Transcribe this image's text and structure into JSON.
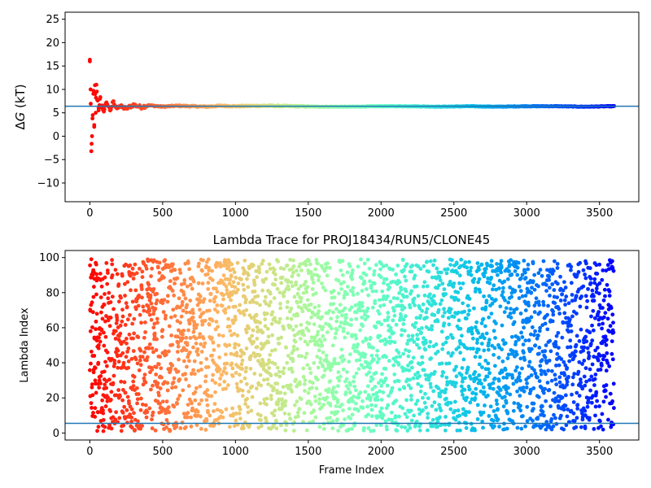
{
  "chart_data": [
    {
      "type": "scatter",
      "title": "",
      "xlabel": "",
      "ylabel": "ΔG (kT)",
      "ylabel_delta": "Δ",
      "ylabel_italic": "G",
      "ylabel_unit": " (kT)",
      "xlim": [
        -170,
        3770
      ],
      "ylim": [
        -14,
        26.5
      ],
      "xticks": [
        0,
        500,
        1000,
        1500,
        2000,
        2500,
        3000,
        3500
      ],
      "yticks": [
        -10,
        -5,
        0,
        5,
        10,
        15,
        20,
        25
      ],
      "reference_line": 6.4,
      "reference_line_color": "#1f77b4",
      "colormap": "rainbow (reversed along frames)",
      "series": [
        {
          "x": [
            0,
            5,
            10,
            15,
            20,
            25,
            30,
            35,
            40,
            45,
            50,
            60,
            70,
            80,
            90,
            100,
            120,
            140,
            160,
            180,
            200,
            250,
            300,
            350,
            400,
            500,
            600,
            700,
            800,
            900,
            1000,
            1200,
            1400,
            1600,
            1800,
            2000,
            2200,
            2400,
            2600,
            2800,
            3000,
            3200,
            3400,
            3590
          ],
          "y": [
            16.0,
            10.0,
            -3.2,
            0.0,
            4.5,
            9.7,
            2.0,
            10.9,
            5.0,
            11.0,
            7.8,
            5.5,
            8.0,
            6.5,
            6.2,
            5.7,
            6.8,
            5.5,
            7.3,
            6.1,
            6.4,
            5.9,
            6.7,
            6.2,
            6.6,
            6.3,
            6.5,
            6.4,
            6.3,
            6.5,
            6.4,
            6.5,
            6.4,
            6.3,
            6.3,
            6.4,
            6.4,
            6.3,
            6.4,
            6.3,
            6.4,
            6.4,
            6.3,
            6.4
          ]
        }
      ]
    },
    {
      "type": "scatter",
      "title": "Lambda Trace for PROJ18434/RUN5/CLONE45",
      "xlabel": "Frame Index",
      "ylabel": "Lambda Index",
      "xlim": [
        -170,
        3770
      ],
      "ylim": [
        -4,
        104
      ],
      "xticks": [
        0,
        500,
        1000,
        1500,
        2000,
        2500,
        3000,
        3500
      ],
      "yticks": [
        0,
        20,
        40,
        60,
        80,
        100
      ],
      "reference_line": 5.5,
      "reference_line_color": "#1f77b4",
      "colormap": "rainbow (reversed along frames)",
      "series": [
        {
          "x_range": [
            0,
            3600
          ],
          "y_range": [
            1,
            99
          ],
          "n_points": 3600,
          "sampled_points": [
            [
              5,
              58
            ],
            [
              10,
              99
            ],
            [
              20,
              90
            ],
            [
              30,
              44
            ],
            [
              40,
              97
            ],
            [
              60,
              88
            ],
            [
              80,
              13
            ],
            [
              100,
              35
            ],
            [
              200,
              20
            ],
            [
              300,
              88
            ],
            [
              400,
              98
            ],
            [
              500,
              74
            ],
            [
              600,
              52
            ],
            [
              700,
              34
            ],
            [
              800,
              8
            ],
            [
              900,
              87
            ],
            [
              1000,
              72
            ],
            [
              1100,
              42
            ],
            [
              1200,
              17
            ],
            [
              1300,
              63
            ],
            [
              1400,
              95
            ],
            [
              1500,
              70
            ],
            [
              1600,
              38
            ],
            [
              1700,
              12
            ],
            [
              1800,
              55
            ],
            [
              1900,
              82
            ],
            [
              2000,
              30
            ],
            [
              2100,
              6
            ],
            [
              2200,
              92
            ],
            [
              2300,
              48
            ],
            [
              2400,
              21
            ],
            [
              2500,
              77
            ],
            [
              2600,
              58
            ],
            [
              2700,
              3
            ],
            [
              2800,
              90
            ],
            [
              2900,
              33
            ],
            [
              3000,
              65
            ],
            [
              3100,
              15
            ],
            [
              3200,
              86
            ],
            [
              3300,
              44
            ],
            [
              3400,
              27
            ],
            [
              3500,
              96
            ],
            [
              3590,
              57
            ]
          ]
        }
      ]
    }
  ]
}
